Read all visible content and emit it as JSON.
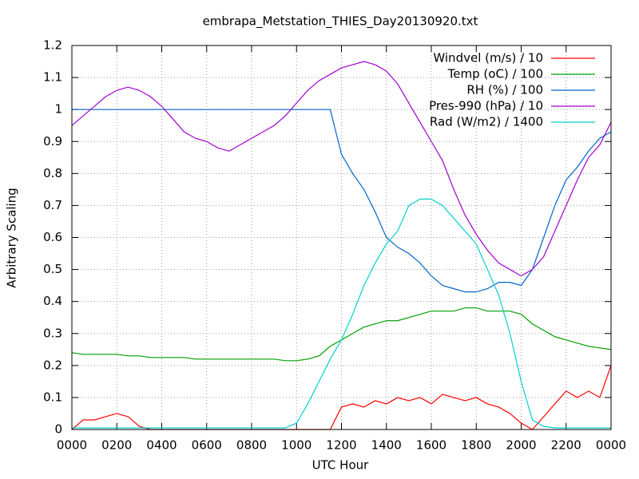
{
  "chart_data": {
    "type": "line",
    "title": "embrapa_Metstation_THIES_Day20130920.txt",
    "xlabel": "UTC Hour",
    "ylabel": "Arbitrary Scaling",
    "x": [
      0,
      0.5,
      1,
      1.5,
      2,
      2.5,
      3,
      3.5,
      4,
      4.5,
      5,
      5.5,
      6,
      6.5,
      7,
      7.5,
      8,
      8.5,
      9,
      9.5,
      10,
      10.5,
      11,
      11.5,
      12,
      12.5,
      13,
      13.5,
      14,
      14.5,
      15,
      15.5,
      16,
      16.5,
      17,
      17.5,
      18,
      18.5,
      19,
      19.5,
      20,
      20.5,
      21,
      21.5,
      22,
      22.5,
      23,
      23.5,
      24
    ],
    "series": [
      {
        "name": "Windvel (m/s) / 10",
        "color": "#ff0000",
        "values": [
          0,
          0.03,
          0.03,
          0.04,
          0.05,
          0.04,
          0.01,
          0,
          0,
          0,
          0,
          0,
          0,
          0,
          0,
          0,
          0,
          0,
          0,
          0,
          0,
          0,
          0,
          0,
          0.07,
          0.08,
          0.07,
          0.09,
          0.08,
          0.1,
          0.09,
          0.1,
          0.08,
          0.11,
          0.1,
          0.09,
          0.1,
          0.08,
          0.07,
          0.05,
          0.02,
          0,
          0.04,
          0.08,
          0.12,
          0.1,
          0.12,
          0.1,
          0.2
        ]
      },
      {
        "name": "Temp (oC) / 100",
        "color": "#00a000",
        "values": [
          0.24,
          0.235,
          0.235,
          0.235,
          0.235,
          0.23,
          0.23,
          0.225,
          0.225,
          0.225,
          0.225,
          0.22,
          0.22,
          0.22,
          0.22,
          0.22,
          0.22,
          0.22,
          0.22,
          0.215,
          0.215,
          0.22,
          0.23,
          0.26,
          0.28,
          0.3,
          0.32,
          0.33,
          0.34,
          0.34,
          0.35,
          0.36,
          0.37,
          0.37,
          0.37,
          0.38,
          0.38,
          0.37,
          0.37,
          0.37,
          0.36,
          0.33,
          0.31,
          0.29,
          0.28,
          0.27,
          0.26,
          0.255,
          0.25
        ]
      },
      {
        "name": "RH (%) / 100",
        "color": "#0066cc",
        "values": [
          1,
          1,
          1,
          1,
          1,
          1,
          1,
          1,
          1,
          1,
          1,
          1,
          1,
          1,
          1,
          1,
          1,
          1,
          1,
          1,
          1,
          1,
          1,
          1,
          0.86,
          0.8,
          0.75,
          0.68,
          0.6,
          0.57,
          0.55,
          0.52,
          0.48,
          0.45,
          0.44,
          0.43,
          0.43,
          0.44,
          0.46,
          0.46,
          0.45,
          0.5,
          0.6,
          0.7,
          0.78,
          0.82,
          0.87,
          0.91,
          0.93
        ]
      },
      {
        "name": "Pres-990 (hPa) / 10",
        "color": "#a000d0",
        "values": [
          0.95,
          0.98,
          1.01,
          1.04,
          1.06,
          1.07,
          1.06,
          1.04,
          1.01,
          0.97,
          0.93,
          0.91,
          0.9,
          0.88,
          0.87,
          0.89,
          0.91,
          0.93,
          0.95,
          0.98,
          1.02,
          1.06,
          1.09,
          1.11,
          1.13,
          1.14,
          1.15,
          1.14,
          1.12,
          1.08,
          1.02,
          0.96,
          0.9,
          0.84,
          0.75,
          0.67,
          0.61,
          0.56,
          0.52,
          0.5,
          0.48,
          0.5,
          0.54,
          0.62,
          0.7,
          0.78,
          0.85,
          0.89,
          0.96
        ]
      },
      {
        "name": "Rad (W/m2) / 1400",
        "color": "#00d0d0",
        "values": [
          0.005,
          0.005,
          0.005,
          0.005,
          0.005,
          0.005,
          0.005,
          0.005,
          0.005,
          0.005,
          0.005,
          0.005,
          0.005,
          0.005,
          0.005,
          0.005,
          0.005,
          0.005,
          0.005,
          0.005,
          0.02,
          0.08,
          0.15,
          0.22,
          0.28,
          0.36,
          0.45,
          0.52,
          0.58,
          0.62,
          0.7,
          0.72,
          0.72,
          0.7,
          0.66,
          0.62,
          0.58,
          0.5,
          0.42,
          0.3,
          0.15,
          0.03,
          0.01,
          0.005,
          0.005,
          0.005,
          0.005,
          0.005,
          0.005
        ]
      }
    ],
    "xlim": [
      0,
      24
    ],
    "xticks": [
      {
        "value": 0,
        "label": "0000"
      },
      {
        "value": 2,
        "label": "0200"
      },
      {
        "value": 4,
        "label": "0400"
      },
      {
        "value": 6,
        "label": "0600"
      },
      {
        "value": 8,
        "label": "0800"
      },
      {
        "value": 10,
        "label": "1000"
      },
      {
        "value": 12,
        "label": "1200"
      },
      {
        "value": 14,
        "label": "1400"
      },
      {
        "value": 16,
        "label": "1600"
      },
      {
        "value": 18,
        "label": "1800"
      },
      {
        "value": 20,
        "label": "2000"
      },
      {
        "value": 22,
        "label": "2200"
      },
      {
        "value": 24,
        "label": "0000"
      }
    ],
    "ylim": [
      0,
      1.2
    ],
    "yticks": [
      0,
      0.1,
      0.2,
      0.3,
      0.4,
      0.5,
      0.6,
      0.7,
      0.8,
      0.9,
      1,
      1.1,
      1.2
    ],
    "grid": true,
    "legend": "top-right"
  }
}
